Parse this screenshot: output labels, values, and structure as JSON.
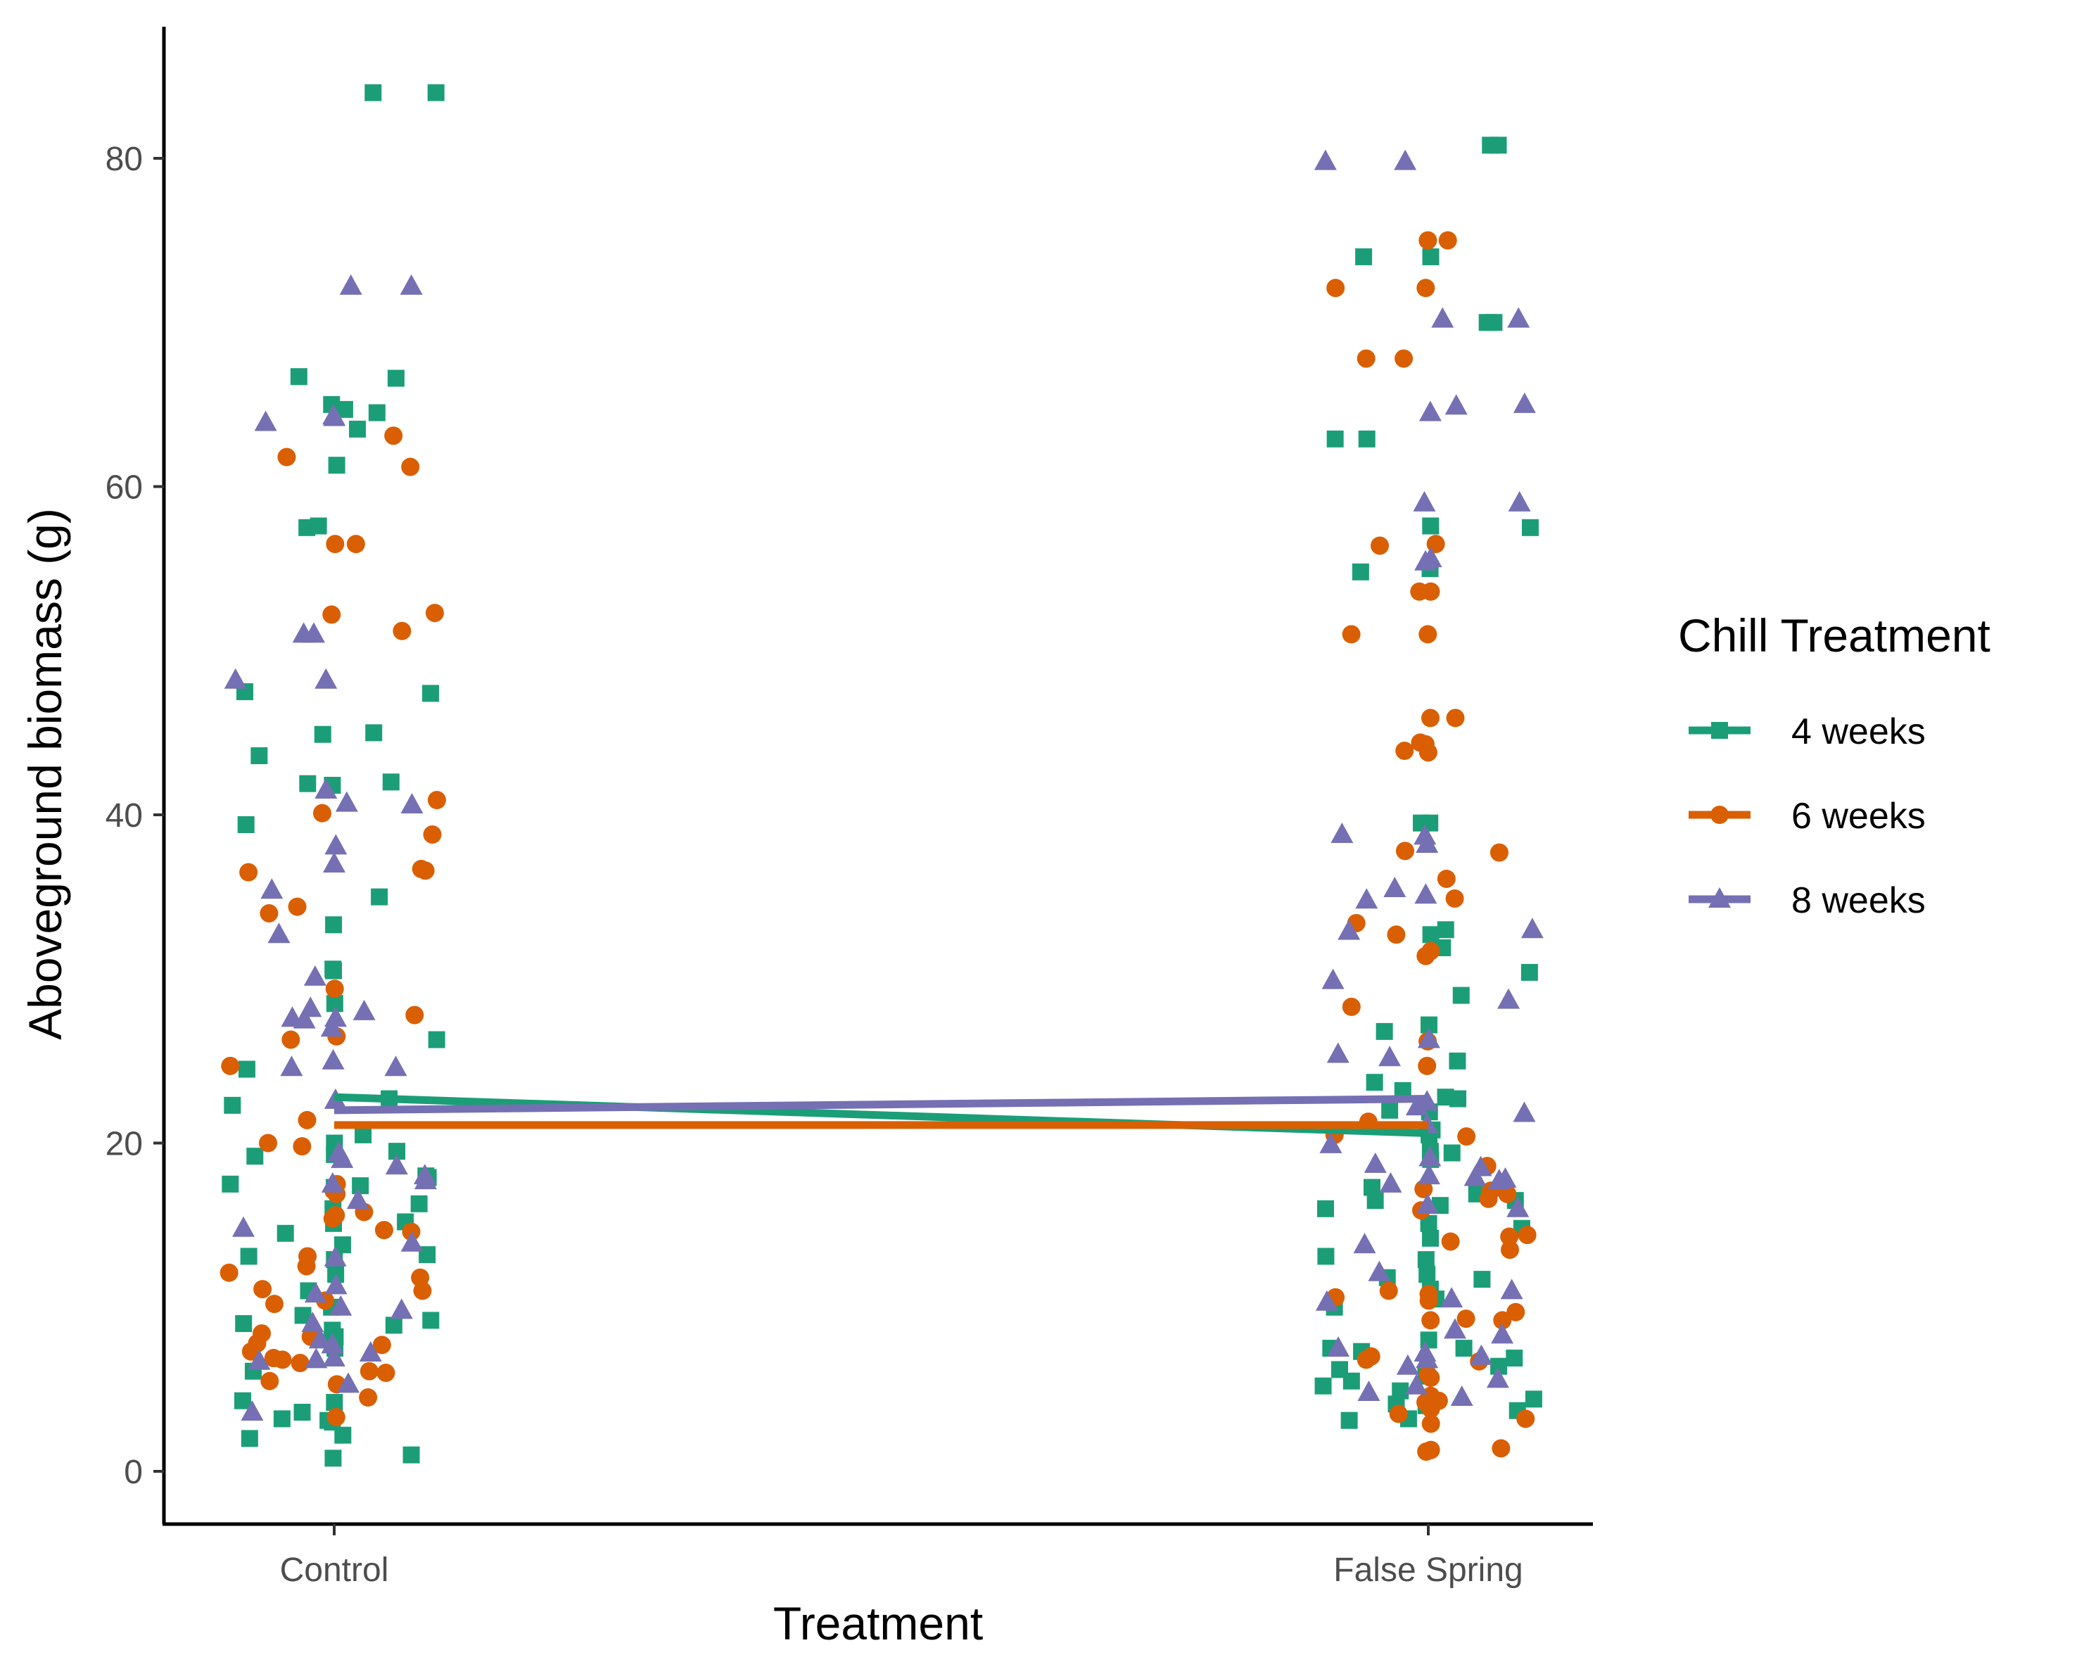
{
  "chart_data": {
    "type": "scatter",
    "xlabel": "Treatment",
    "ylabel": "Aboveground biomass (g)",
    "categories": [
      "Control",
      "False Spring"
    ],
    "ylim": [
      -3.2,
      88
    ],
    "yticks": [
      0,
      20,
      40,
      60,
      80
    ],
    "grid": false,
    "legend": {
      "title": "Chill Treatment",
      "position": "right"
    },
    "series": [
      {
        "name": "4 weeks",
        "color": "#1b9e77",
        "marker": "square",
        "mean_line": [
          22.8,
          20.6
        ],
        "points": {
          "Control": [
            84,
            84,
            66.7,
            66.6,
            65,
            64.7,
            64.5,
            63.5,
            61.3,
            57.6,
            57.5,
            47.4,
            47.5,
            45,
            44.9,
            43.6,
            42,
            41.9,
            41.8,
            39.4,
            35,
            33.3,
            30.6,
            30.5,
            28.5,
            26.3,
            24.5,
            22.7,
            22.3,
            20.5,
            20,
            19.5,
            19.3,
            19.2,
            18,
            17.9,
            17.4,
            17.5,
            17.3,
            16.3,
            16,
            15.1,
            15.2,
            14.5,
            13.8,
            13.2,
            13.1,
            12.9,
            12,
            11,
            10,
            9.5,
            9.2,
            9,
            8.9,
            8.6,
            8.2,
            8,
            7.5,
            6.1,
            4.3,
            4.2,
            3.6,
            3.2,
            3.1,
            3,
            2.2,
            2,
            1,
            0.8
          ],
          "False Spring": [
            80.8,
            80.8,
            74,
            74,
            70,
            70,
            62.9,
            62.9,
            57.5,
            57.6,
            55,
            54.8,
            39.5,
            39.5,
            33,
            32.7,
            31.9,
            30.4,
            29,
            27.2,
            26.8,
            25,
            23.7,
            23.2,
            22.8,
            22.7,
            22,
            21.9,
            20.8,
            20.5,
            19.5,
            19.4,
            19,
            17.3,
            16.9,
            16.5,
            16.5,
            16.2,
            16,
            15.1,
            14.8,
            14.2,
            13.1,
            12.9,
            12,
            11.8,
            11.7,
            11.1,
            10.5,
            10.5,
            10,
            8,
            7.5,
            7.5,
            7.3,
            6.9,
            6.4,
            6.2,
            5.8,
            5.5,
            5.2,
            4.9,
            4.4,
            4.2,
            4.1,
            4.1,
            4,
            3.7,
            3.2,
            3.1
          ]
        }
      },
      {
        "name": "6 weeks",
        "color": "#d95f02",
        "marker": "circle",
        "mean_line": [
          21.1,
          21.1
        ],
        "points": {
          "Control": [
            63.1,
            61.8,
            61.2,
            56.5,
            56.5,
            52.3,
            52.2,
            51.2,
            40.9,
            40.1,
            38.8,
            36.7,
            36.6,
            36.5,
            34.4,
            34,
            29.4,
            27.8,
            26.5,
            26.3,
            24.7,
            21.4,
            20,
            19.8,
            17.5,
            17.1,
            16.9,
            15.8,
            15.6,
            15.4,
            14.7,
            14.6,
            13.1,
            12.5,
            12.1,
            11.8,
            11.1,
            11,
            10.4,
            10.2,
            8.4,
            8.2,
            7.8,
            7.7,
            7.3,
            6.9,
            6.8,
            6.6,
            6.1,
            6,
            5.5,
            5.3,
            4.5,
            3.3
          ],
          "False Spring": [
            75,
            75,
            72.1,
            72.1,
            67.8,
            67.8,
            56.5,
            56.4,
            53.6,
            53.6,
            51,
            51,
            45.9,
            45.9,
            44.4,
            44.3,
            43.9,
            43.8,
            37.8,
            37.7,
            36.1,
            34.9,
            33.4,
            32.7,
            31.7,
            31.4,
            28.3,
            26.2,
            24.7,
            21.3,
            20.5,
            20.4,
            18.6,
            17.2,
            17.1,
            16.9,
            16.6,
            15.9,
            14.4,
            14.3,
            14,
            13.5,
            11,
            10.8,
            10.6,
            10.4,
            9.7,
            9.3,
            9.2,
            9.2,
            7,
            6.8,
            6.7,
            5.9,
            5.7,
            4.6,
            4.3,
            4.2,
            3.8,
            3.5,
            3.2,
            2.9,
            1.4,
            1.3,
            1.2
          ]
        }
      },
      {
        "name": "8 weeks",
        "color": "#7570b3",
        "marker": "triangle",
        "mean_line": [
          22.0,
          22.7
        ],
        "points": {
          "Control": [
            72.2,
            72.2,
            64.3,
            64.2,
            63.9,
            51,
            51,
            48.2,
            48.2,
            41.5,
            40.7,
            40.6,
            38.1,
            37,
            35.4,
            32.7,
            30.1,
            28.2,
            28,
            27.6,
            27.6,
            27.5,
            27,
            25,
            24.6,
            24.6,
            22.6,
            19.4,
            19,
            18.6,
            18,
            17.7,
            17.5,
            16.5,
            14.8,
            13.9,
            13,
            11.3,
            10.8,
            10,
            9.8,
            9,
            8,
            7.7,
            7.2,
            6.9,
            6.8,
            6.7,
            5.3,
            3.6
          ],
          "False Spring": [
            79.8,
            79.8,
            70.2,
            70.2,
            65,
            64.9,
            64.5,
            59,
            59,
            55.6,
            55.4,
            38.8,
            38.7,
            38.2,
            35.5,
            35.1,
            34.8,
            33,
            32.9,
            29.9,
            28.7,
            26.3,
            25.4,
            25.2,
            22.5,
            22.2,
            21.8,
            21.1,
            19.9,
            19.1,
            18.7,
            18.5,
            18,
            17.9,
            17.8,
            17.7,
            17.5,
            16.2,
            16,
            13.8,
            12.1,
            11,
            10.5,
            10.3,
            8.6,
            8.3,
            7.5,
            7.2,
            7,
            6.8,
            6.4,
            5.6,
            5.2,
            4.8,
            4.5
          ]
        }
      }
    ]
  }
}
